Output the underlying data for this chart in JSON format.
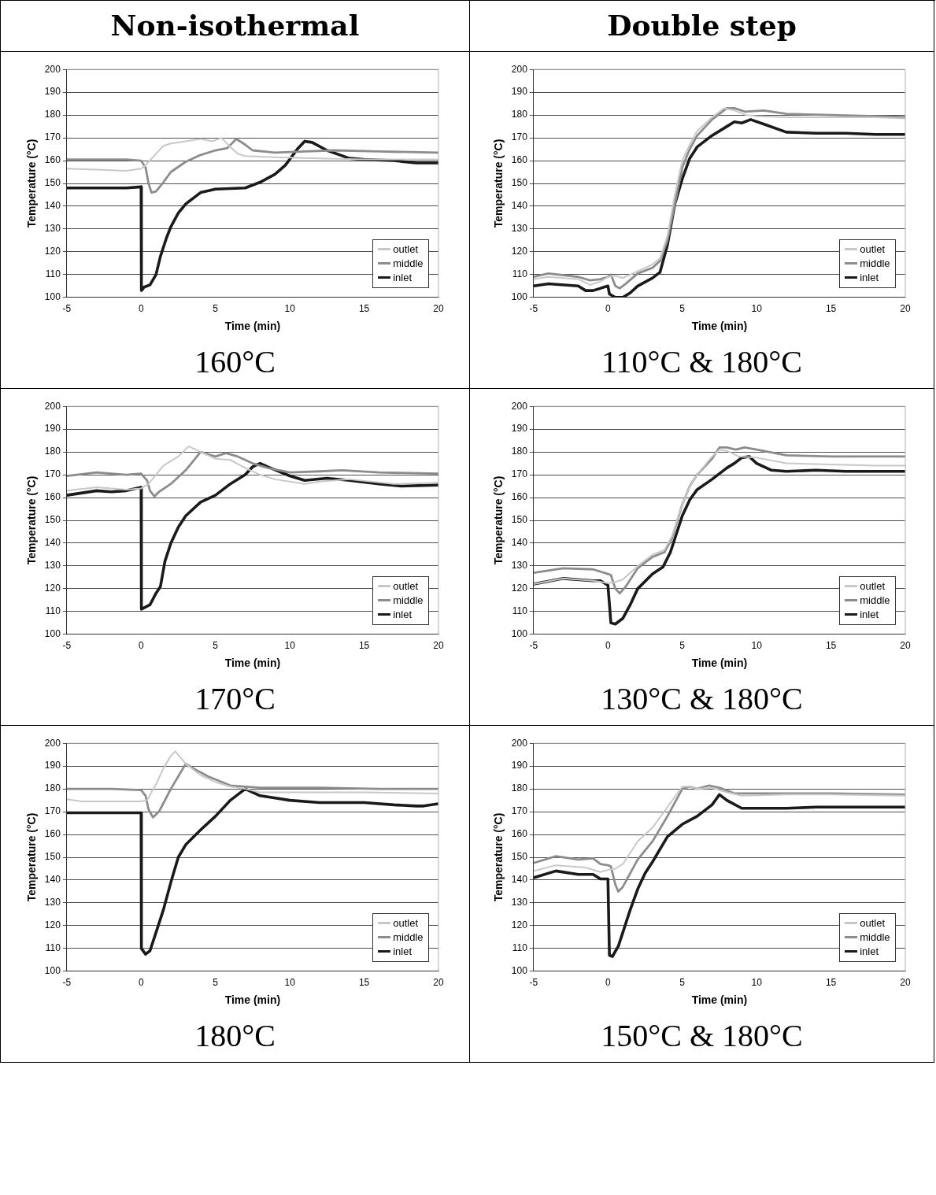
{
  "chart_data": [
    {
      "type": "line",
      "title": "Non-isothermal",
      "subtitle": "160°C",
      "xlabel": "Time (min)",
      "ylabel": "Temperature (°C)",
      "xlim": [
        -5,
        20
      ],
      "xticks": [
        -5,
        0,
        5,
        10,
        15,
        20
      ],
      "ylim": [
        100,
        200
      ],
      "yticks": [
        100,
        110,
        120,
        130,
        140,
        150,
        160,
        170,
        180,
        190,
        200
      ],
      "grid": "y",
      "legend": "bottom right",
      "marker": "none",
      "line_style": "solid",
      "series": [
        {
          "name": "outlet",
          "color": "#c8c8c8",
          "x": [
            -5,
            -3,
            -1,
            0,
            0.3,
            1,
            1.5,
            2,
            3,
            4,
            4.8,
            5.4,
            6,
            6.5,
            7,
            9,
            12,
            15,
            17,
            20
          ],
          "values": [
            156.5,
            156,
            155.5,
            156.5,
            158,
            163,
            166.5,
            167.5,
            168.5,
            169.5,
            168.5,
            170,
            166,
            163,
            162,
            161.5,
            161,
            160.5,
            160.5,
            160.5
          ]
        },
        {
          "name": "middle",
          "color": "#8c8c8c",
          "x": [
            -5,
            -1,
            0,
            0.3,
            0.5,
            0.7,
            1,
            1.5,
            2,
            3,
            4,
            5,
            5.8,
            6.4,
            7,
            7.5,
            9,
            11,
            13,
            16,
            20
          ],
          "values": [
            160.5,
            160.5,
            160,
            157,
            150,
            146,
            146.5,
            150.5,
            155,
            159.5,
            162.5,
            164.5,
            165.5,
            169.5,
            167,
            164.5,
            163.5,
            164,
            164.5,
            164,
            163.5
          ]
        },
        {
          "name": "inlet",
          "color": "#1a1a1a",
          "x": [
            -5,
            -1,
            0,
            0.02,
            0.2,
            0.6,
            1,
            1.3,
            1.7,
            2,
            2.5,
            3,
            4,
            5,
            7,
            8,
            9,
            9.7,
            10.5,
            11,
            11.5,
            12.5,
            14,
            15,
            17,
            18.5,
            20
          ],
          "values": [
            148,
            148,
            148.5,
            103,
            104.5,
            105.5,
            110,
            118,
            126,
            131,
            137,
            141,
            146,
            147.5,
            148,
            150.5,
            154,
            158,
            165,
            168.5,
            168,
            164.5,
            161,
            160.5,
            160,
            159,
            159
          ]
        }
      ]
    },
    {
      "type": "line",
      "title": "Double step",
      "subtitle": "110°C & 180°C",
      "xlabel": "Time (min)",
      "ylabel": "Temperature (°C)",
      "xlim": [
        -5,
        20
      ],
      "xticks": [
        -5,
        0,
        5,
        10,
        15,
        20
      ],
      "ylim": [
        100,
        200
      ],
      "yticks": [
        100,
        110,
        120,
        130,
        140,
        150,
        160,
        170,
        180,
        190,
        200
      ],
      "grid": "y",
      "legend": "bottom right",
      "marker": "none",
      "line_style": "solid",
      "series": [
        {
          "name": "outlet",
          "color": "#c8c8c8",
          "x": [
            -5,
            -4,
            -2,
            -1.2,
            -0.5,
            0,
            0.5,
            1,
            2,
            3,
            3.5,
            4,
            4.5,
            5,
            5.5,
            6,
            7,
            7.8,
            8.5,
            9.3,
            10,
            12,
            15,
            18,
            20
          ],
          "values": [
            108,
            109,
            108,
            105.5,
            107,
            109,
            109.5,
            108.5,
            111.5,
            114.5,
            117,
            127,
            145,
            160,
            167,
            173,
            179,
            183,
            182,
            180,
            179.5,
            179,
            179,
            179,
            178.5
          ]
        },
        {
          "name": "middle",
          "color": "#8c8c8c",
          "x": [
            -5,
            -4,
            -2,
            -1.2,
            -0.5,
            0,
            0.2,
            0.5,
            0.8,
            1.2,
            2,
            3,
            3.5,
            4,
            4.5,
            5,
            5.5,
            6,
            7,
            8,
            8.5,
            9.2,
            10.5,
            12,
            15,
            18,
            20
          ],
          "values": [
            109,
            110.5,
            109,
            107.5,
            108,
            109,
            110,
            105,
            104,
            106,
            110.5,
            113,
            116,
            125,
            141,
            157,
            165,
            171,
            178,
            183,
            183,
            181.5,
            182,
            180.5,
            180,
            179.5,
            179
          ]
        },
        {
          "name": "inlet",
          "color": "#1a1a1a",
          "x": [
            -5,
            -4,
            -2,
            -1.5,
            -1,
            0,
            0.1,
            0.5,
            1,
            1.5,
            2,
            3,
            3.5,
            4,
            4.5,
            5,
            5.5,
            6,
            7,
            8,
            8.5,
            9,
            9.6,
            10.5,
            12,
            14,
            16,
            18,
            20
          ],
          "values": [
            105,
            106,
            105,
            103,
            103,
            105,
            101.5,
            100,
            100,
            102,
            105,
            108.5,
            111,
            123,
            141,
            152,
            161,
            166,
            171,
            175,
            177,
            176.5,
            178,
            176,
            172.5,
            172,
            172,
            171.5,
            171.5
          ]
        }
      ]
    },
    {
      "type": "line",
      "subtitle": "170°C",
      "xlabel": "Time (min)",
      "ylabel": "Temperature (°C)",
      "xlim": [
        -5,
        20
      ],
      "xticks": [
        -5,
        0,
        5,
        10,
        15,
        20
      ],
      "ylim": [
        100,
        200
      ],
      "yticks": [
        100,
        110,
        120,
        130,
        140,
        150,
        160,
        170,
        180,
        190,
        200
      ],
      "grid": "y",
      "legend": "bottom right",
      "marker": "none",
      "line_style": "solid",
      "series": [
        {
          "name": "outlet",
          "color": "#c8c8c8",
          "x": [
            -5,
            -3,
            -1,
            0,
            0.5,
            1,
            1.5,
            2,
            2.5,
            3.2,
            4,
            5,
            6,
            7,
            8,
            9,
            11,
            12,
            14,
            17,
            20
          ],
          "values": [
            163,
            164.5,
            163.5,
            164,
            166,
            170,
            174,
            176,
            178,
            182.5,
            180,
            177,
            176.5,
            173,
            170,
            168,
            166,
            167,
            168,
            166,
            166.5
          ]
        },
        {
          "name": "middle",
          "color": "#8c8c8c",
          "x": [
            -5,
            -3,
            -1,
            0,
            0.4,
            0.6,
            0.9,
            1.2,
            2,
            3,
            4,
            4.5,
            5,
            5.7,
            6.5,
            7.5,
            8.5,
            10,
            12,
            13.5,
            16,
            20
          ],
          "values": [
            169.5,
            171,
            170,
            170.5,
            167.5,
            163,
            160.5,
            162.5,
            166,
            172,
            180,
            179,
            178,
            179.5,
            178,
            175,
            173,
            171,
            171.5,
            172,
            171,
            170.5
          ]
        },
        {
          "name": "inlet",
          "color": "#1a1a1a",
          "x": [
            -5,
            -3,
            -2,
            -1,
            0,
            0.02,
            0.6,
            1,
            1.3,
            1.6,
            2,
            2.5,
            3,
            4,
            5,
            6,
            7,
            7.5,
            8,
            8.5,
            10,
            11,
            12.5,
            14,
            16,
            17.5,
            20
          ],
          "values": [
            161,
            163,
            162.5,
            163,
            164.5,
            111,
            113,
            118,
            121,
            132,
            140,
            147,
            152,
            158,
            161,
            166,
            170,
            173.5,
            175,
            173.5,
            169.5,
            167.5,
            168.5,
            167.5,
            166,
            165,
            165.5
          ]
        }
      ]
    },
    {
      "type": "line",
      "subtitle": "130°C & 180°C",
      "xlabel": "Time (min)",
      "ylabel": "Temperature (°C)",
      "xlim": [
        -5,
        20
      ],
      "xticks": [
        -5,
        0,
        5,
        10,
        15,
        20
      ],
      "ylim": [
        100,
        200
      ],
      "yticks": [
        100,
        110,
        120,
        130,
        140,
        150,
        160,
        170,
        180,
        190,
        200
      ],
      "grid": "y",
      "legend": "bottom right",
      "marker": "none",
      "line_style": "solid",
      "series": [
        {
          "name": "outlet",
          "color": "#c8c8c8",
          "x": [
            -5,
            -3,
            -1,
            0,
            0.5,
            1,
            2,
            3,
            3.8,
            4.3,
            5,
            5.5,
            6,
            7,
            7.5,
            8,
            8.8,
            10,
            12,
            15,
            18,
            20
          ],
          "values": [
            122,
            124.5,
            123.5,
            122.5,
            123,
            124,
            130,
            135,
            137,
            143,
            157,
            165,
            170,
            178,
            181,
            180.5,
            178,
            177.5,
            175,
            174.5,
            174,
            174
          ]
        },
        {
          "name": "middle",
          "color": "#8c8c8c",
          "x": [
            -5,
            -3,
            -1,
            0,
            0.2,
            0.5,
            0.8,
            1.2,
            2,
            3,
            3.8,
            4.3,
            5,
            5.5,
            6,
            7,
            7.5,
            8,
            8.6,
            9.2,
            10,
            12,
            15,
            20
          ],
          "values": [
            127,
            129,
            128.5,
            126.5,
            126,
            120,
            118,
            121,
            129,
            134,
            136,
            142,
            157,
            165,
            170,
            177,
            182,
            182,
            181,
            182,
            181,
            178.5,
            178,
            178
          ]
        },
        {
          "name": "inlet",
          "color": "#1a1a1a",
          "x": [
            -5,
            -3,
            -1,
            -0.5,
            0,
            0.2,
            0.5,
            1,
            1.5,
            2,
            3,
            3.7,
            4.2,
            5,
            5.5,
            6,
            7,
            8,
            8.5,
            9,
            9.5,
            10,
            11,
            12,
            14,
            16,
            20
          ],
          "values": [
            122,
            124.5,
            123.5,
            123.5,
            121.5,
            105,
            104.5,
            107,
            113,
            120,
            126.5,
            129.5,
            136,
            152,
            159,
            163.5,
            168,
            173,
            175,
            177.5,
            178,
            175,
            172,
            171.5,
            172,
            171.5,
            171.5
          ]
        }
      ]
    },
    {
      "type": "line",
      "subtitle": "180°C",
      "xlabel": "Time (min)",
      "ylabel": "Temperature (°C)",
      "xlim": [
        -5,
        20
      ],
      "xticks": [
        -5,
        0,
        5,
        10,
        15,
        20
      ],
      "ylim": [
        100,
        200
      ],
      "yticks": [
        100,
        110,
        120,
        130,
        140,
        150,
        160,
        170,
        180,
        190,
        200
      ],
      "grid": "y",
      "legend": "bottom right",
      "marker": "none",
      "line_style": "solid",
      "series": [
        {
          "name": "outlet",
          "color": "#c8c8c8",
          "x": [
            -5,
            -4,
            -2,
            0,
            0.4,
            1,
            1.5,
            2,
            2.3,
            3,
            4,
            5,
            6,
            7,
            8,
            10,
            15,
            20
          ],
          "values": [
            175.5,
            174.5,
            174.5,
            174.5,
            175,
            182,
            189,
            194.5,
            196.5,
            191,
            186,
            183,
            181,
            180,
            178.5,
            178.5,
            178.5,
            178
          ]
        },
        {
          "name": "middle",
          "color": "#8c8c8c",
          "x": [
            -5,
            -2,
            0,
            0.3,
            0.5,
            0.8,
            1.2,
            2,
            3,
            3.5,
            4.5,
            6,
            8,
            12,
            16,
            20
          ],
          "values": [
            180,
            180,
            179.5,
            177,
            171,
            167.5,
            170,
            180,
            191,
            189,
            185.5,
            181.5,
            180.5,
            180.5,
            180,
            180
          ]
        },
        {
          "name": "inlet",
          "color": "#1a1a1a",
          "x": [
            -5,
            -2,
            0,
            0.02,
            0.3,
            0.6,
            1,
            1.5,
            2,
            2.5,
            3,
            4,
            5,
            6,
            7,
            8,
            10,
            12,
            15,
            17,
            18.5,
            19,
            20
          ],
          "values": [
            169.5,
            169.5,
            169.5,
            110,
            107.5,
            109,
            117,
            127,
            139,
            150,
            155.5,
            162,
            168,
            175,
            180,
            177,
            175,
            174,
            174,
            173,
            172.5,
            172.5,
            173.5
          ]
        }
      ]
    },
    {
      "type": "line",
      "subtitle": "150°C & 180°C",
      "xlabel": "Time (min)",
      "ylabel": "Temperature (°C)",
      "xlim": [
        -5,
        20
      ],
      "xticks": [
        -5,
        0,
        5,
        10,
        15,
        20
      ],
      "ylim": [
        100,
        200
      ],
      "yticks": [
        100,
        110,
        120,
        130,
        140,
        150,
        160,
        170,
        180,
        190,
        200
      ],
      "grid": "y",
      "legend": "bottom right",
      "marker": "none",
      "line_style": "solid",
      "series": [
        {
          "name": "outlet",
          "color": "#c8c8c8",
          "x": [
            -5,
            -3.5,
            -1.5,
            -0.5,
            0,
            0.5,
            1,
            2,
            3,
            4,
            5,
            5.5,
            6,
            7,
            8,
            9,
            12,
            15,
            20
          ],
          "values": [
            144,
            146.5,
            145.5,
            143.5,
            144.5,
            145,
            147,
            157,
            163,
            172,
            181,
            181,
            180,
            180.5,
            178.5,
            177,
            177.5,
            177.5,
            177
          ]
        },
        {
          "name": "middle",
          "color": "#8c8c8c",
          "x": [
            -5,
            -3.5,
            -2,
            -1,
            -0.5,
            0,
            0.2,
            0.5,
            0.7,
            1,
            2,
            3,
            4,
            5,
            5.5,
            6,
            6.8,
            7.5,
            8.5,
            12,
            15,
            20
          ],
          "values": [
            147.5,
            150.5,
            149,
            149.5,
            147,
            146.5,
            146,
            138,
            135,
            137,
            149,
            157,
            168,
            180,
            181,
            180,
            181.5,
            180.5,
            178,
            178,
            178,
            177.5
          ]
        },
        {
          "name": "inlet",
          "color": "#1a1a1a",
          "x": [
            -5,
            -3.5,
            -2,
            -1,
            -0.5,
            0,
            0.1,
            0.3,
            0.7,
            1,
            1.5,
            2,
            2.5,
            3,
            4,
            5,
            6,
            7,
            7.5,
            8,
            9,
            12,
            14,
            20
          ],
          "values": [
            141,
            144,
            142.5,
            142.5,
            140.5,
            140.5,
            107,
            106.5,
            111,
            117,
            127,
            136,
            143,
            148,
            159,
            164.5,
            168,
            173,
            177.5,
            175,
            171.5,
            171.5,
            172,
            172
          ]
        }
      ]
    }
  ]
}
